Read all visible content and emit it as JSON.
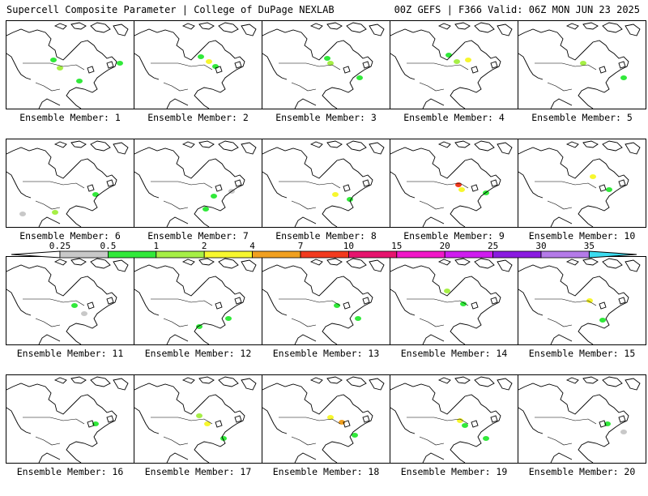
{
  "header": {
    "title": "Supercell Composite Parameter | College of DuPage NEXLAB",
    "run_info": "00Z GEFS | F366 Valid: 06Z MON JUN 23 2025"
  },
  "colorbar": {
    "labels": [
      "0.25",
      "0.5",
      "1",
      "2",
      "4",
      "7",
      "10",
      "15",
      "20",
      "25",
      "30",
      "35"
    ],
    "colors": [
      "#c8c8c8",
      "#31e93a",
      "#a6ef46",
      "#f7f72e",
      "#f0a020",
      "#f23a1e",
      "#e6146e",
      "#f018c8",
      "#cf1cef",
      "#8a1be0",
      "#b47ae8",
      "#3cdcf0"
    ]
  },
  "members": [
    {
      "label": "Ensemble Member: 1"
    },
    {
      "label": "Ensemble Member: 2"
    },
    {
      "label": "Ensemble Member: 3"
    },
    {
      "label": "Ensemble Member: 4"
    },
    {
      "label": "Ensemble Member: 5"
    },
    {
      "label": "Ensemble Member: 6"
    },
    {
      "label": "Ensemble Member: 7"
    },
    {
      "label": "Ensemble Member: 8"
    },
    {
      "label": "Ensemble Member: 9"
    },
    {
      "label": "Ensemble Member: 10"
    },
    {
      "label": "Ensemble Member: 11"
    },
    {
      "label": "Ensemble Member: 12"
    },
    {
      "label": "Ensemble Member: 13"
    },
    {
      "label": "Ensemble Member: 14"
    },
    {
      "label": "Ensemble Member: 15"
    },
    {
      "label": "Ensemble Member: 16"
    },
    {
      "label": "Ensemble Member: 17"
    },
    {
      "label": "Ensemble Member: 18"
    },
    {
      "label": "Ensemble Member: 19"
    },
    {
      "label": "Ensemble Member: 20"
    }
  ]
}
